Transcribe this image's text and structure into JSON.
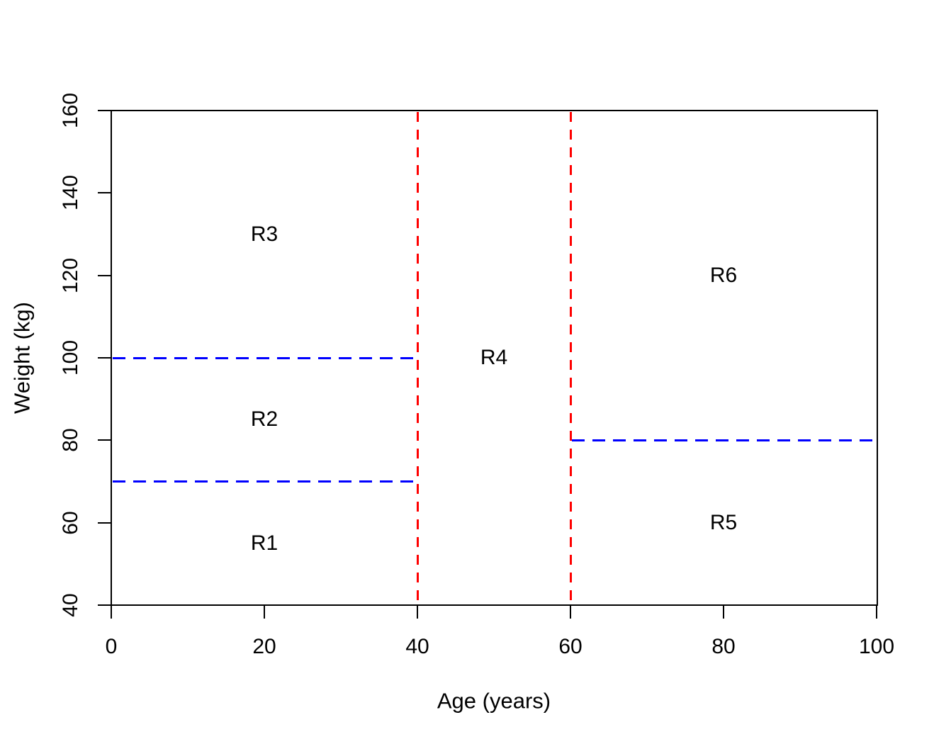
{
  "chart_data": {
    "type": "partition-plot",
    "title": "",
    "xlabel": "Age (years)",
    "ylabel": "Weight (kg)",
    "xlim": [
      0,
      100
    ],
    "ylim": [
      40,
      160
    ],
    "x_ticks": [
      0,
      20,
      40,
      60,
      80,
      100
    ],
    "y_ticks": [
      40,
      60,
      80,
      100,
      120,
      140,
      160
    ],
    "grid": false,
    "legend": "none",
    "colors": {
      "box": "#000000",
      "text": "#000000",
      "vertical_split": "#ff0000",
      "horizontal_split": "#0000ff"
    },
    "vertical_lines": [
      {
        "x": 40,
        "y0": 40,
        "y1": 160,
        "color": "#ff0000",
        "style": "dashed"
      },
      {
        "x": 60,
        "y0": 40,
        "y1": 160,
        "color": "#ff0000",
        "style": "dashed"
      }
    ],
    "horizontal_lines": [
      {
        "y": 100,
        "x0": 0,
        "x1": 40,
        "color": "#0000ff",
        "style": "dashed"
      },
      {
        "y": 70,
        "x0": 0,
        "x1": 40,
        "color": "#0000ff",
        "style": "dashed"
      },
      {
        "y": 80,
        "x0": 60,
        "x1": 100,
        "color": "#0000ff",
        "style": "dashed"
      }
    ],
    "region_labels": [
      {
        "text": "R1",
        "x": 20,
        "y": 55
      },
      {
        "text": "R2",
        "x": 20,
        "y": 85
      },
      {
        "text": "R3",
        "x": 20,
        "y": 130
      },
      {
        "text": "R4",
        "x": 50,
        "y": 100
      },
      {
        "text": "R5",
        "x": 80,
        "y": 60
      },
      {
        "text": "R6",
        "x": 80,
        "y": 120
      }
    ]
  }
}
